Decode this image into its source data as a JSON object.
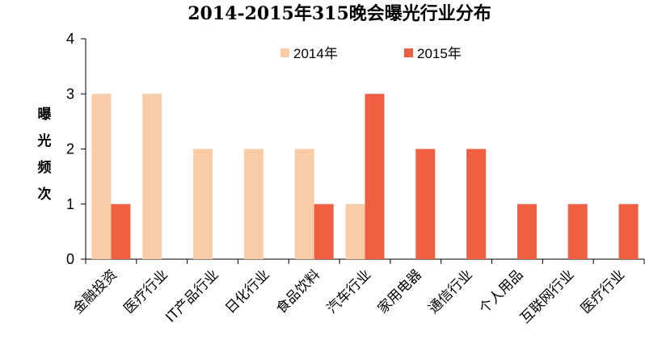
{
  "chart_data": {
    "type": "bar",
    "title": "2014-2015年315晚会曝光行业分布",
    "xlabel": "",
    "ylabel": "曝光频次",
    "ylim": [
      0,
      4
    ],
    "yticks": [
      "0",
      "1",
      "2",
      "3",
      "4"
    ],
    "grid": false,
    "legend_position": "top-center",
    "categories": [
      "金融投资",
      "医疗行业",
      "IT产品行业",
      "日化行业",
      "食品饮料",
      "汽车行业",
      "家用电器",
      "通信行业",
      "个人用品",
      "互联网行业",
      "医疗行业"
    ],
    "series": [
      {
        "name": "2014年",
        "color": "#F9CBA7",
        "values": [
          3,
          3,
          2,
          2,
          2,
          1,
          0,
          0,
          0,
          0,
          0
        ]
      },
      {
        "name": "2015年",
        "color": "#EE6041",
        "values": [
          1,
          0,
          0,
          0,
          1,
          3,
          2,
          2,
          1,
          1,
          1
        ]
      }
    ]
  }
}
